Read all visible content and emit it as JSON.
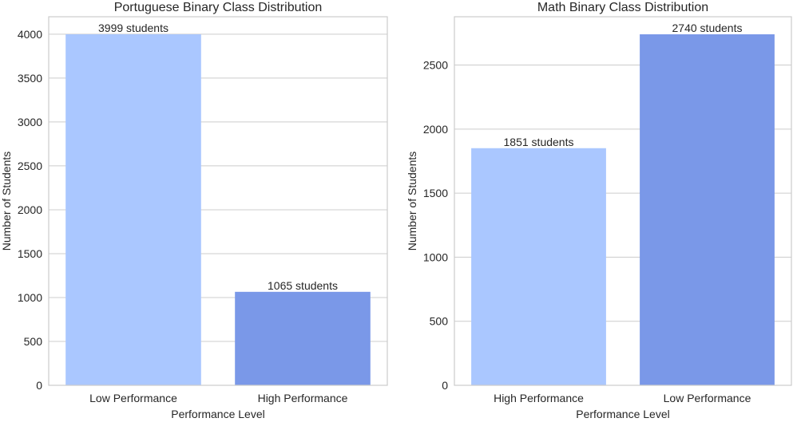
{
  "chart_data": [
    {
      "type": "bar",
      "title": "Portuguese Binary Class Distribution",
      "xlabel": "Performance Level",
      "ylabel": "Number of Students",
      "categories": [
        "Low Performance",
        "High Performance"
      ],
      "values": [
        3999,
        1065
      ],
      "data_labels": [
        "3999 students",
        "1065 students"
      ],
      "colors": [
        "#aac7ff",
        "#7a98e8"
      ],
      "yticks": [
        0,
        500,
        1000,
        1500,
        2000,
        2500,
        3000,
        3500,
        4000
      ],
      "ylim": [
        0,
        4199
      ],
      "grid": true
    },
    {
      "type": "bar",
      "title": "Math Binary Class Distribution",
      "xlabel": "Performance Level",
      "ylabel": "Number of Students",
      "categories": [
        "High Performance",
        "Low Performance"
      ],
      "values": [
        1851,
        2740
      ],
      "data_labels": [
        "1851 students",
        "2740 students"
      ],
      "colors": [
        "#aac7ff",
        "#7a98e8"
      ],
      "yticks": [
        0,
        500,
        1000,
        1500,
        2000,
        2500
      ],
      "ylim": [
        0,
        2877
      ],
      "grid": true
    }
  ]
}
